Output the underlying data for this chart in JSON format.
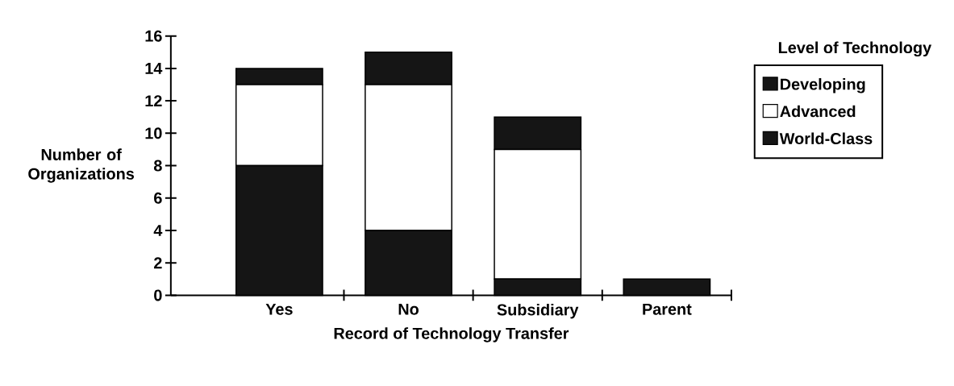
{
  "chart_data": {
    "type": "bar",
    "stacked": true,
    "xlabel": "Record of Technology Transfer",
    "ylabel": "Number of Organizations",
    "legend_title": "Level of Technology",
    "categories": [
      "Yes",
      "No",
      "Subsidiary",
      "Parent"
    ],
    "series": [
      {
        "name": "World-Class",
        "color": "#151515",
        "values": [
          8,
          4,
          1,
          1
        ]
      },
      {
        "name": "Advanced",
        "color": "#ffffff",
        "values": [
          5,
          9,
          8,
          0
        ]
      },
      {
        "name": "Developing",
        "color": "#151515",
        "values": [
          1,
          2,
          2,
          0
        ]
      }
    ],
    "ylim": [
      0,
      16
    ],
    "yticks": [
      0,
      2,
      4,
      6,
      8,
      10,
      12,
      14,
      16
    ],
    "legend": "right"
  }
}
